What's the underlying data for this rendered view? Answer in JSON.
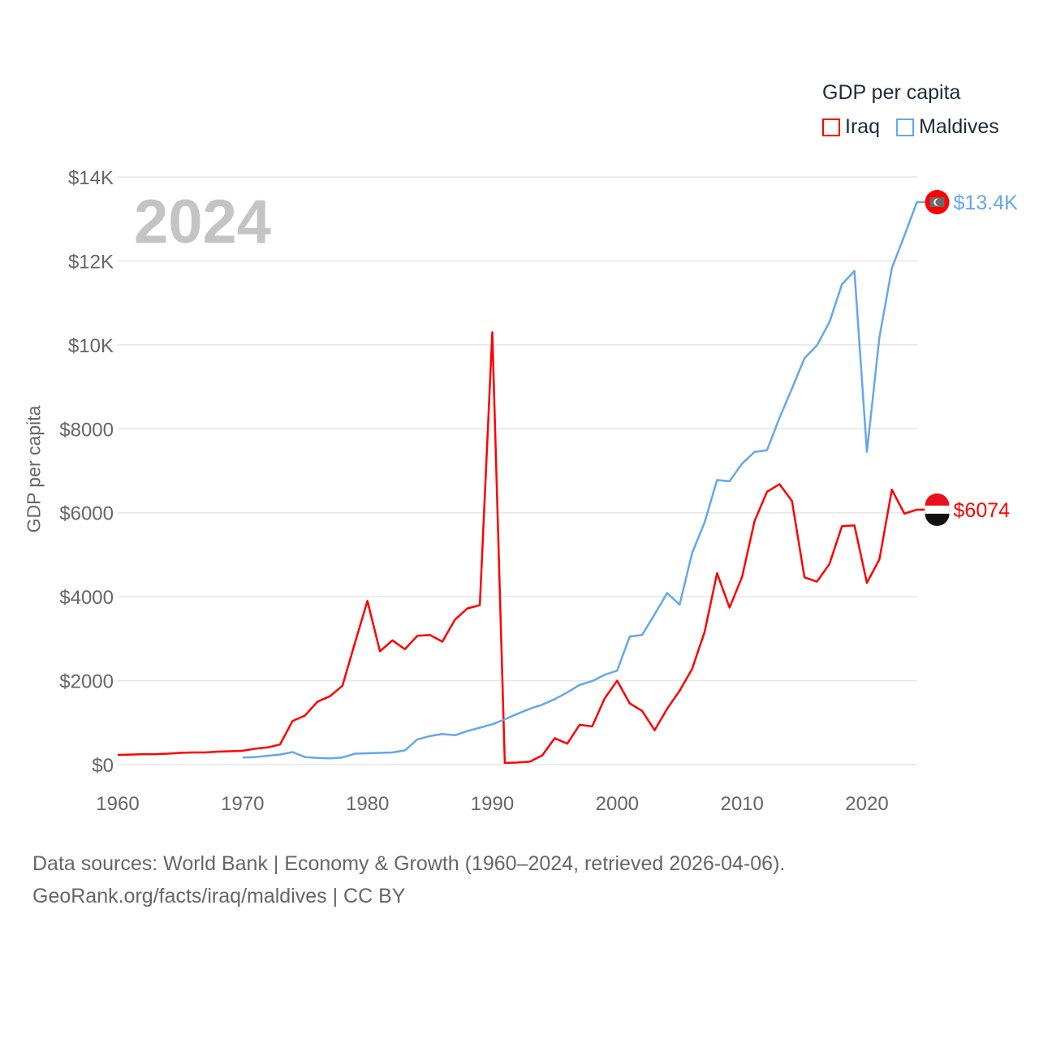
{
  "legend": {
    "title": "GDP per capita",
    "items": [
      {
        "name": "Iraq",
        "color": "#ff0000"
      },
      {
        "name": "Maldives",
        "color": "#64a8ea"
      }
    ]
  },
  "year_label": "2024",
  "footer": {
    "line1": "Data sources: World Bank | Economy & Growth (1960–2024, retrieved 2026-04-06).",
    "line2": "GeoRank.org/facts/iraq/maldives | CC BY"
  },
  "chart_data": {
    "type": "line",
    "title": "GDP per capita",
    "xlabel": "",
    "ylabel": "GDP per capita",
    "xlim": [
      1960,
      2024
    ],
    "ylim": [
      0,
      14000
    ],
    "grid": true,
    "legend_position": "top-right",
    "x_ticks": [
      1960,
      1970,
      1980,
      1990,
      2000,
      2010,
      2020
    ],
    "x_tick_labels": [
      "1960",
      "1970",
      "1980",
      "1990",
      "2000",
      "2010",
      "2020"
    ],
    "y_ticks": [
      0,
      2000,
      4000,
      6000,
      8000,
      10000,
      12000,
      14000
    ],
    "y_tick_labels": [
      "$0",
      "$2000",
      "$4000",
      "$6000",
      "$8000",
      "$10K",
      "$12K",
      "$14K"
    ],
    "series": [
      {
        "name": "Iraq",
        "color": "#ff0000",
        "end_label": "$6074",
        "start_year": 1960,
        "values": [
          232,
          240,
          250,
          250,
          260,
          280,
          290,
          290,
          310,
          320,
          330,
          380,
          410,
          480,
          1040,
          1170,
          1500,
          1630,
          1880,
          2900,
          3900,
          2700,
          2960,
          2750,
          3070,
          3090,
          2930,
          3450,
          3720,
          3800,
          10300,
          40,
          50,
          70,
          220,
          630,
          500,
          950,
          910,
          1580,
          2000,
          1460,
          1280,
          820,
          1330,
          1760,
          2280,
          3160,
          4560,
          3740,
          4470,
          5800,
          6500,
          6680,
          6280,
          4460,
          4360,
          4780,
          5680,
          5700,
          4330,
          4890,
          6550,
          5980,
          6074
        ]
      },
      {
        "name": "Maldives",
        "color": "#64a8ea",
        "end_label": "$13.4K",
        "start_year": 1970,
        "values": [
          170,
          180,
          210,
          240,
          300,
          180,
          160,
          150,
          170,
          260,
          270,
          280,
          290,
          340,
          600,
          680,
          730,
          700,
          800,
          880,
          960,
          1080,
          1210,
          1330,
          1430,
          1560,
          1720,
          1900,
          1990,
          2140,
          2240,
          3050,
          3090,
          3580,
          4090,
          3810,
          5040,
          5770,
          6780,
          6750,
          7170,
          7450,
          7490,
          8260,
          8960,
          9680,
          9990,
          10540,
          11440,
          11760,
          7450,
          10180,
          11830,
          12600,
          13400
        ]
      }
    ]
  }
}
